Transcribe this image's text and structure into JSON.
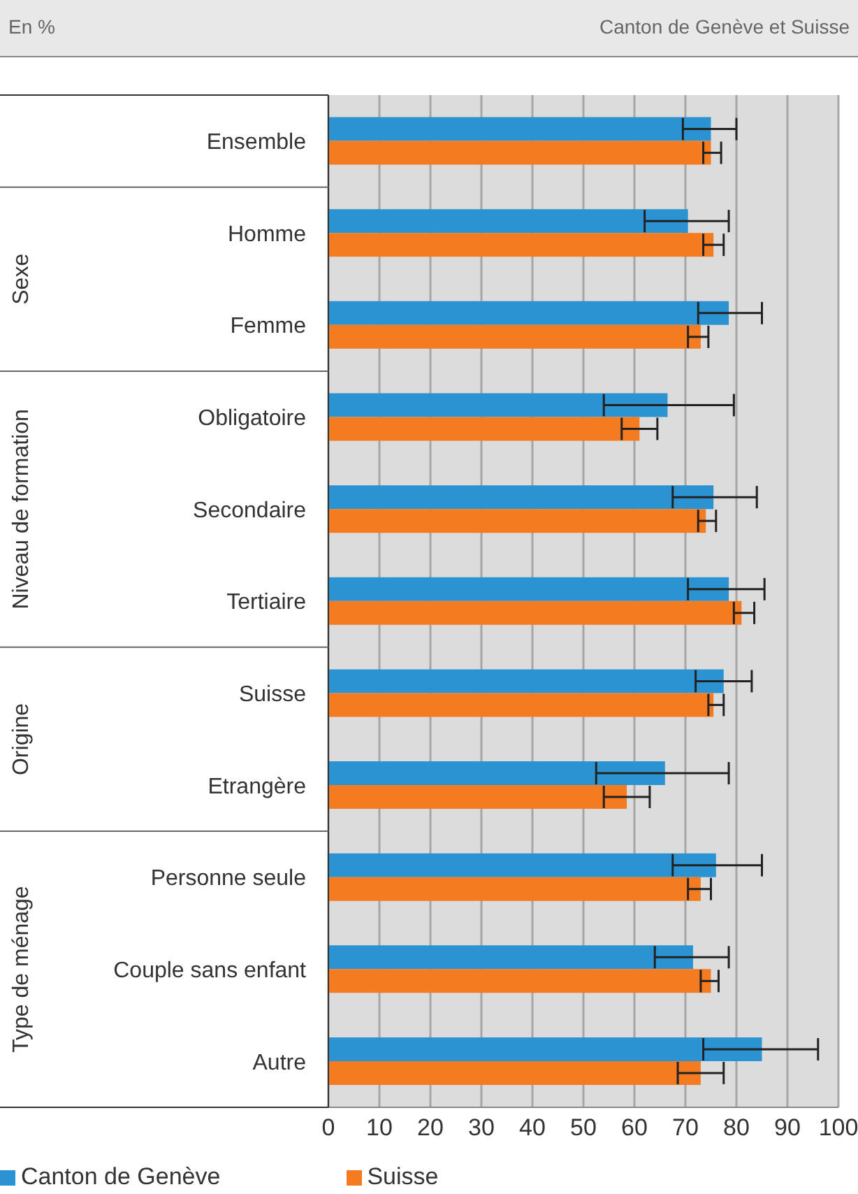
{
  "chart_data": {
    "type": "bar",
    "orientation": "horizontal",
    "title": "Canton de Genève et Suisse",
    "subtitle": "En %",
    "categories": [
      "Ensemble",
      "Homme",
      "Femme",
      "Obligatoire",
      "Secondaire",
      "Tertiaire",
      "Suisse",
      "Etrangère",
      "Personne seule",
      "Couple sans enfant",
      "Autre"
    ],
    "series": [
      {
        "name": "Canton de Genève",
        "color": "#2b93d1",
        "values": [
          75,
          70.5,
          78.5,
          66.5,
          75.5,
          78.5,
          77.5,
          66,
          76,
          71.5,
          85
        ],
        "errors": [
          [
            69.5,
            80
          ],
          [
            62,
            78.5
          ],
          [
            72.5,
            85
          ],
          [
            54,
            79.5
          ],
          [
            67.5,
            84
          ],
          [
            70.5,
            85.5
          ],
          [
            72,
            83
          ],
          [
            52.5,
            78.5
          ],
          [
            67.5,
            85
          ],
          [
            64,
            78.5
          ],
          [
            73.5,
            96
          ]
        ]
      },
      {
        "name": "Suisse",
        "color": "#f47b20",
        "values": [
          75,
          75.5,
          73,
          61,
          74,
          81,
          75.5,
          58.5,
          73,
          75,
          73
        ],
        "errors": [
          [
            73.5,
            77
          ],
          [
            73.5,
            77.5
          ],
          [
            70.5,
            74.5
          ],
          [
            57.5,
            64.5
          ],
          [
            72.5,
            76
          ],
          [
            79.5,
            83.5
          ],
          [
            74.5,
            77.5
          ],
          [
            54,
            63
          ],
          [
            70.5,
            75
          ],
          [
            73,
            76.5
          ],
          [
            68.5,
            77.5
          ]
        ]
      }
    ],
    "xlim": [
      0,
      100
    ],
    "xticks": [
      0,
      10,
      20,
      30,
      40,
      50,
      60,
      70,
      80,
      90,
      100
    ],
    "grid": "x",
    "legend": "bottom",
    "annotations": [
      "Sexe",
      "Niveau de formation",
      "Origine",
      "Type de ménage"
    ]
  }
}
